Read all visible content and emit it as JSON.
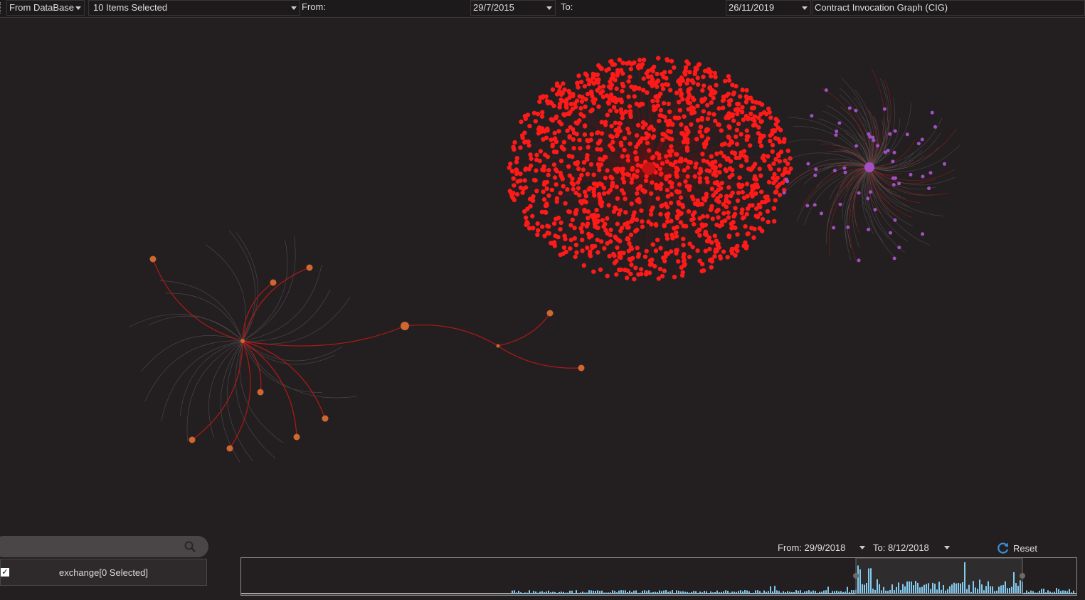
{
  "toolbar": {
    "source": "From DataBase",
    "items": "10 Items Selected",
    "from_label": "From:",
    "from_date": "29/7/2015",
    "to_label": "To:",
    "to_date": "26/11/2019",
    "graph_type": "Contract Invocation Graph (CIG)"
  },
  "colors": {
    "background": "#231f20",
    "red_cluster": "#ff1a1a",
    "purple_cluster": "#a44fc4",
    "orange_nodes": "#d0672f",
    "edge_red": "#b01818",
    "timeline_bar": "#7ec8f0"
  },
  "search": {
    "placeholder": "",
    "icon": "search-icon"
  },
  "legend": {
    "checked": true,
    "label": "exchange[0 Selected]"
  },
  "range": {
    "from_label": "From: 29/9/2018",
    "to_label": "To: 8/12/2018",
    "reset_label": "Reset"
  }
}
